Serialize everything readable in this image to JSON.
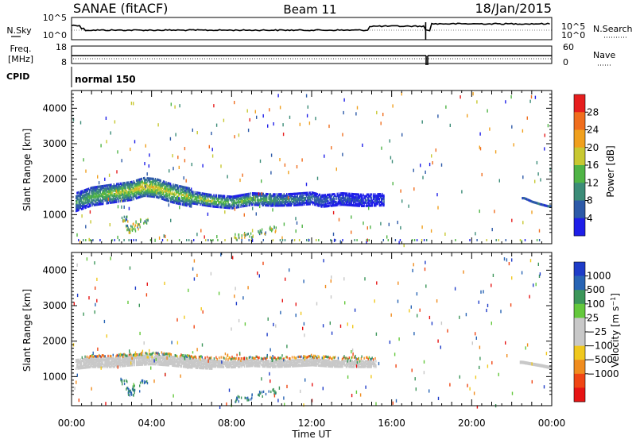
{
  "header": {
    "station": "SANAE (fitACF)",
    "beam": "Beam 11",
    "date": "18/Jan/2015"
  },
  "noise_panel": {
    "left_label": "N.Sky",
    "right_label": "N.Search",
    "left_ticks": [
      "10^5",
      "10^0"
    ],
    "right_ticks": [
      "10^5",
      "10^0"
    ]
  },
  "freq_panel": {
    "left_label_line1": "Freq.",
    "left_label_line2": "[MHz]",
    "right_label": "Nave",
    "left_ticks": [
      "18",
      "8"
    ],
    "right_ticks": [
      "60",
      "0"
    ]
  },
  "cpid": {
    "label": "CPID",
    "value": "normal 150"
  },
  "time_axis": {
    "label": "Time UT",
    "ticks": [
      "00:00",
      "04:00",
      "08:00",
      "12:00",
      "16:00",
      "20:00",
      "00:00"
    ]
  },
  "colors": {
    "power_scale": [
      "#1e1ee8",
      "#2d5aa8",
      "#3c8c78",
      "#50b446",
      "#c8c832",
      "#f0a01e",
      "#f06e1e",
      "#e61e1e"
    ],
    "velocity_scale": [
      "#1e3cc8",
      "#2864b4",
      "#3c965a",
      "#64c83c",
      "#c8c8c8",
      "#c8c8c8",
      "#f0c81e",
      "#f08c1e",
      "#f04614",
      "#e61414"
    ]
  },
  "chart_data": [
    {
      "type": "heatmap",
      "title": "",
      "xlabel": "Time UT",
      "ylabel": "Slant Range [km]",
      "xlim": [
        0,
        24
      ],
      "ylim": [
        180,
        4500
      ],
      "yticks": [
        1000,
        2000,
        3000,
        4000
      ],
      "colorbar": {
        "label": "Power [dB]",
        "range": [
          0,
          32
        ],
        "ticks": [
          4,
          8,
          12,
          16,
          20,
          24,
          28
        ]
      },
      "main_band": [
        [
          0.2,
          1400
        ],
        [
          1.0,
          1560
        ],
        [
          2.0,
          1640
        ],
        [
          3.0,
          1720
        ],
        [
          3.6,
          1830
        ],
        [
          4.2,
          1800
        ],
        [
          5.0,
          1650
        ],
        [
          6.0,
          1520
        ],
        [
          7.0,
          1430
        ],
        [
          8.0,
          1380
        ],
        [
          9.0,
          1480
        ],
        [
          10.0,
          1450
        ],
        [
          11.0,
          1460
        ],
        [
          12.0,
          1500
        ],
        [
          12.5,
          1420
        ],
        [
          13.5,
          1480
        ],
        [
          14.5,
          1440
        ],
        [
          15.5,
          1460
        ]
      ],
      "band_power": [
        [
          0.2,
          10
        ],
        [
          1.0,
          14
        ],
        [
          2.0,
          17
        ],
        [
          3.0,
          19
        ],
        [
          3.6,
          22
        ],
        [
          4.2,
          20
        ],
        [
          5.0,
          18
        ],
        [
          6.0,
          16
        ],
        [
          7.0,
          18
        ],
        [
          8.0,
          14
        ],
        [
          9.0,
          16
        ],
        [
          10.0,
          12
        ],
        [
          11.0,
          10
        ],
        [
          12.0,
          8
        ],
        [
          13.0,
          6
        ],
        [
          14.0,
          5
        ],
        [
          15.5,
          4
        ]
      ],
      "secondary_echoes": [
        [
          2.6,
          900
        ],
        [
          2.9,
          650
        ],
        [
          3.0,
          550
        ],
        [
          3.2,
          700
        ],
        [
          3.6,
          850
        ],
        [
          8.3,
          400
        ],
        [
          8.8,
          450
        ],
        [
          9.5,
          550
        ],
        [
          10.0,
          620
        ]
      ],
      "late_echoes": [
        [
          22.6,
          1500
        ],
        [
          23.0,
          1400
        ],
        [
          23.4,
          1330
        ],
        [
          23.8,
          1270
        ]
      ]
    },
    {
      "type": "heatmap",
      "title": "",
      "xlabel": "Time UT",
      "ylabel": "Slant Range [km]",
      "xlim": [
        0,
        24
      ],
      "ylim": [
        180,
        4500
      ],
      "yticks": [
        1000,
        2000,
        3000,
        4000
      ],
      "colorbar": {
        "label": "Velocity [m s^-1]",
        "ticks": [
          "1000",
          "500",
          "100",
          "25",
          "−25",
          "−100",
          "−500",
          "−1000"
        ]
      },
      "ground_scatter_band": [
        [
          0.2,
          1450
        ],
        [
          1.0,
          1500
        ],
        [
          2.0,
          1500
        ],
        [
          3.0,
          1550
        ],
        [
          4.0,
          1580
        ],
        [
          5.0,
          1540
        ],
        [
          6.0,
          1480
        ],
        [
          7.0,
          1450
        ],
        [
          8.0,
          1430
        ],
        [
          9.0,
          1470
        ],
        [
          10.0,
          1440
        ],
        [
          11.0,
          1460
        ],
        [
          12.0,
          1490
        ],
        [
          13.0,
          1450
        ],
        [
          14.5,
          1440
        ]
      ],
      "ionospheric_echoes": [
        [
          3.0,
          1620,
          -100
        ],
        [
          4.0,
          1680,
          -100
        ],
        [
          6.0,
          1620,
          100
        ],
        [
          8.0,
          1580,
          -500
        ],
        [
          10.0,
          1560,
          500
        ],
        [
          12.0,
          1550,
          -100
        ],
        [
          14.0,
          1530,
          100
        ]
      ],
      "late_ground_scatter": [
        [
          22.5,
          1450
        ],
        [
          23.0,
          1400
        ],
        [
          23.5,
          1350
        ],
        [
          23.9,
          1300
        ]
      ]
    }
  ]
}
